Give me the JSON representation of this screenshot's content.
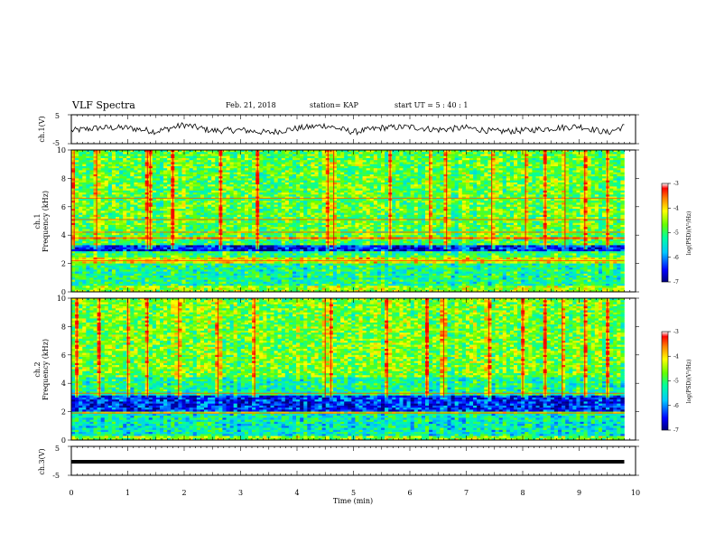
{
  "header": {
    "title": "VLF Spectra",
    "date": "Feb. 21, 2018",
    "station": "station= KAP",
    "start": "start  UT =  5 : 40 : 1"
  },
  "panels": {
    "ch1_wave_label": "ch.1(V)",
    "ch1_spec_label_a": "ch.1",
    "ch1_spec_label_b": "Frequency  (kHz)",
    "ch2_spec_label_a": "ch.2",
    "ch2_spec_label_b": "Frequency  (kHz)",
    "ch3_wave_label": "ch.3(V)",
    "colorbar_label": "log(PSD)(V²/Hz)",
    "xlabel": "Time  (min)"
  },
  "colors": {
    "colormap": [
      "#00007a",
      "#0000ff",
      "#00c8ff",
      "#00ffa0",
      "#64ff00",
      "#ffff00",
      "#ff8000",
      "#ff0000",
      "#ffffff"
    ]
  },
  "chart_data": [
    {
      "type": "line",
      "name": "ch1-waveform",
      "ylabel": "ch.1(V)",
      "ylim": [
        -5,
        5
      ],
      "yticks": [
        -5,
        5
      ],
      "xlim": [
        0,
        10
      ],
      "note_values": "noisy waveform around 0 V, amplitude ~±1.5 V",
      "x": [
        0.0,
        0.5,
        1.0,
        1.5,
        2.0,
        2.5,
        3.0,
        3.5,
        4.0,
        4.5,
        5.0,
        5.5,
        6.0,
        6.5,
        7.0,
        7.5,
        8.0,
        8.5,
        9.0,
        9.5,
        9.8
      ],
      "y": [
        -0.5,
        0.5,
        0.5,
        -0.8,
        1.5,
        -0.5,
        -0.3,
        -1.2,
        0.3,
        1.3,
        -1.0,
        0.5,
        0.8,
        -0.2,
        0.5,
        -0.8,
        -0.5,
        0.3,
        1.0,
        -1.2,
        1.0
      ]
    },
    {
      "type": "heatmap",
      "name": "ch1-spectrogram",
      "ylabel": "Frequency  (kHz)",
      "ylim": [
        0,
        10
      ],
      "yticks": [
        0,
        2,
        4,
        6,
        8,
        10
      ],
      "xlim": [
        0,
        10
      ],
      "color_range": [
        -7,
        -3
      ],
      "colorbar_ticks": [
        -7,
        -6,
        -5,
        -4,
        -3
      ],
      "bands": [
        {
          "fmin": 0.0,
          "fmax": 0.4,
          "level": -4.5
        },
        {
          "fmin": 0.4,
          "fmax": 2.0,
          "level": -5.2
        },
        {
          "fmin": 2.0,
          "fmax": 2.4,
          "level": -4.2
        },
        {
          "fmin": 2.4,
          "fmax": 2.8,
          "level": -5.0
        },
        {
          "fmin": 2.8,
          "fmax": 3.3,
          "level": -6.5
        },
        {
          "fmin": 3.3,
          "fmax": 3.7,
          "level": -5.0
        },
        {
          "fmin": 3.7,
          "fmax": 3.9,
          "level": -3.8
        },
        {
          "fmin": 3.9,
          "fmax": 10.0,
          "level": -4.8
        }
      ],
      "lines_khz": [
        2.2,
        3.8,
        4.2,
        5.1,
        6.6
      ],
      "bursts_min": [
        0.05,
        0.45,
        1.35,
        1.4,
        1.8,
        2.65,
        3.3,
        4.55,
        4.65,
        5.65,
        6.35,
        6.65,
        7.45,
        8.05,
        8.4,
        8.75,
        9.1,
        9.5
      ]
    },
    {
      "type": "heatmap",
      "name": "ch2-spectrogram",
      "ylabel": "Frequency  (kHz)",
      "ylim": [
        0,
        10
      ],
      "yticks": [
        0,
        2,
        4,
        6,
        8,
        10
      ],
      "xlim": [
        0,
        10
      ],
      "color_range": [
        -7,
        -3
      ],
      "colorbar_ticks": [
        -7,
        -6,
        -5,
        -4,
        -3
      ],
      "bands": [
        {
          "fmin": 0.0,
          "fmax": 0.3,
          "level": -4.6
        },
        {
          "fmin": 0.3,
          "fmax": 1.8,
          "level": -5.4
        },
        {
          "fmin": 1.8,
          "fmax": 2.0,
          "level": -4.5
        },
        {
          "fmin": 2.0,
          "fmax": 3.2,
          "level": -6.4
        },
        {
          "fmin": 3.2,
          "fmax": 4.5,
          "level": -5.2
        },
        {
          "fmin": 4.5,
          "fmax": 10.0,
          "level": -4.7
        }
      ],
      "lines_khz": [
        1.9,
        3.3
      ],
      "bursts_min": [
        0.1,
        0.5,
        1.0,
        1.35,
        1.9,
        2.6,
        3.25,
        4.5,
        4.6,
        5.6,
        6.3,
        6.6,
        7.4,
        8.0,
        8.4,
        8.7,
        9.1,
        9.5
      ]
    },
    {
      "type": "line",
      "name": "ch3-waveform",
      "ylabel": "ch.3(V)",
      "ylim": [
        -5,
        5
      ],
      "yticks": [
        -5,
        5
      ],
      "xlim": [
        0,
        10
      ],
      "x": [
        0,
        9.8
      ],
      "y": [
        0,
        0
      ]
    }
  ],
  "x_axis": {
    "label": "Time  (min)",
    "ticks": [
      0,
      1,
      2,
      3,
      4,
      5,
      6,
      7,
      8,
      9,
      10
    ],
    "data_end": 9.8
  }
}
